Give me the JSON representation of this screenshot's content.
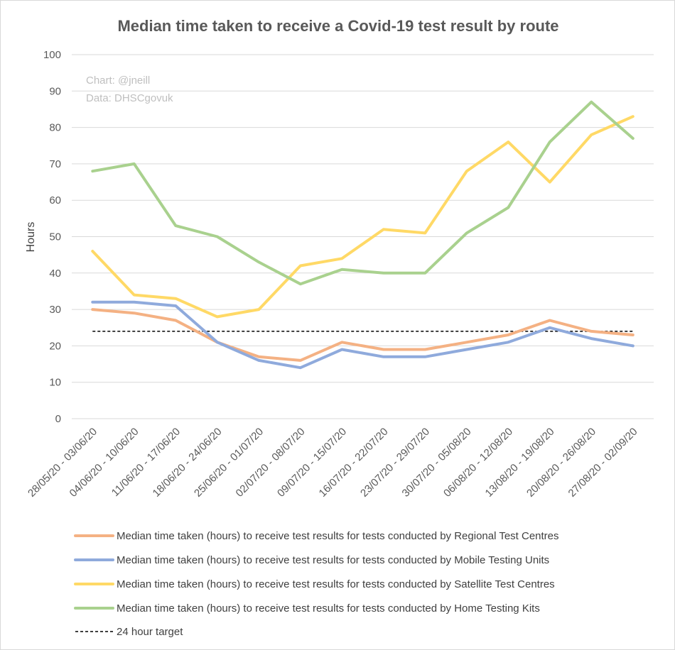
{
  "chart_data": {
    "type": "line",
    "title": "Median time taken to receive a Covid-19 test result by route",
    "ylabel": "Hours",
    "xlabel": "",
    "ylim": [
      0,
      100
    ],
    "yticks": [
      0,
      10,
      20,
      30,
      40,
      50,
      60,
      70,
      80,
      90,
      100
    ],
    "grid": true,
    "legend_position": "bottom",
    "credits": [
      "Chart: @jneill",
      "Data: DHSCgovuk"
    ],
    "categories": [
      "28/05/20 - 03/06/20",
      "04/06/20 - 10/06/20",
      "11/06/20 - 17/06/20",
      "18/06/20 - 24/06/20",
      "25/06/20 - 01/07/20",
      "02/07/20 - 08/07/20",
      "09/07/20 - 15/07/20",
      "16/07/20 - 22/07/20",
      "23/07/20 - 29/07/20",
      "30/07/20 - 05/08/20",
      "06/08/20 - 12/08/20",
      "13/08/20 - 19/08/20",
      "20/08/20 - 26/08/20",
      "27/08/20 - 02/09/20"
    ],
    "series": [
      {
        "name": "Median time taken (hours) to receive test results for tests conducted by Regional Test Centres",
        "color": "#f4b183",
        "values": [
          30,
          29,
          27,
          21,
          17,
          16,
          21,
          19,
          19,
          21,
          23,
          27,
          24,
          23
        ]
      },
      {
        "name": "Median time taken (hours) to receive test results for tests conducted by Mobile Testing Units",
        "color": "#8faadc",
        "values": [
          32,
          32,
          31,
          21,
          16,
          14,
          19,
          17,
          17,
          19,
          21,
          25,
          22,
          20
        ]
      },
      {
        "name": "Median time taken (hours) to receive test results for tests conducted by Satellite Test Centres",
        "color": "#ffd966",
        "values": [
          46,
          34,
          33,
          28,
          30,
          42,
          44,
          52,
          51,
          68,
          76,
          65,
          78,
          83
        ]
      },
      {
        "name": "Median time taken (hours) to receive test results for tests conducted by Home Testing Kits",
        "color": "#a9d18e",
        "values": [
          68,
          70,
          53,
          50,
          43,
          37,
          41,
          40,
          40,
          51,
          58,
          76,
          87,
          77
        ]
      }
    ],
    "target": {
      "name": "24 hour target",
      "value": 24,
      "color": "#000000"
    },
    "colors": {
      "gridline": "#d9d9d9",
      "text": "#595959",
      "credit": "#bfbfbf"
    }
  }
}
